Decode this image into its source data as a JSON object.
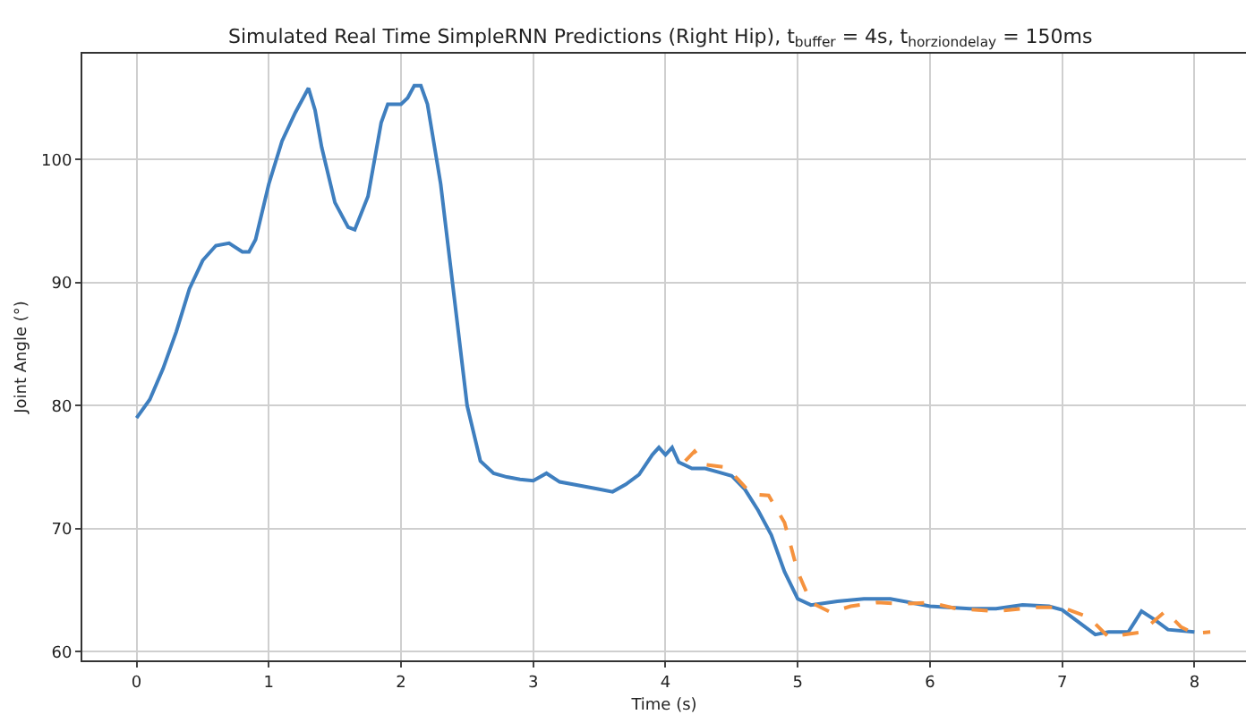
{
  "chart_data": {
    "type": "line",
    "title": "Simulated Real Time SimpleRNN Predictions (Right Hip), t$_{buffer}$ = 4s, t$_{horziondelay}$ = 150ms",
    "xlabel": "Time (s)",
    "ylabel": "Joint Angle (°)",
    "xlim": [
      -0.41,
      8.39
    ],
    "xticks": [
      0,
      1,
      2,
      3,
      4,
      5,
      6,
      7,
      8
    ],
    "ylim": [
      59.3,
      108.6
    ],
    "yticks": [
      60,
      70,
      80,
      90,
      100
    ],
    "grid": true,
    "marker": "none",
    "series": [
      {
        "color": "#3f7fbf",
        "line_style": "solid",
        "x": [
          0,
          0.1,
          0.2,
          0.3,
          0.4,
          0.5,
          0.6,
          0.7,
          0.8,
          0.85,
          0.9,
          1.0,
          1.1,
          1.2,
          1.3,
          1.35,
          1.4,
          1.5,
          1.6,
          1.65,
          1.75,
          1.85,
          1.9,
          2.0,
          2.05,
          2.1,
          2.15,
          2.2,
          2.3,
          2.4,
          2.5,
          2.6,
          2.7,
          2.8,
          2.9,
          3.0,
          3.1,
          3.2,
          3.3,
          3.4,
          3.5,
          3.6,
          3.7,
          3.8,
          3.9,
          3.95,
          4.0,
          4.05,
          4.1,
          4.2,
          4.3,
          4.4,
          4.5,
          4.6,
          4.7,
          4.8,
          4.9,
          5.0,
          5.1,
          5.3,
          5.5,
          5.7,
          6.0,
          6.3,
          6.5,
          6.7,
          6.9,
          7.0,
          7.1,
          7.25,
          7.35,
          7.5,
          7.6,
          7.7,
          7.8,
          8.0
        ],
        "values": [
          79,
          80.5,
          83,
          86,
          89.5,
          91.8,
          93,
          93.2,
          92.5,
          92.5,
          93.5,
          98,
          101.5,
          103.8,
          105.8,
          104,
          101,
          96.5,
          94.5,
          94.3,
          97,
          103,
          104.5,
          104.5,
          105,
          106,
          106,
          104.5,
          98,
          89,
          80,
          75.5,
          74.5,
          74.2,
          74.0,
          73.9,
          74.5,
          73.8,
          73.6,
          73.4,
          73.2,
          73.0,
          73.6,
          74.4,
          76.0,
          76.6,
          76.0,
          76.6,
          75.4,
          74.9,
          74.9,
          74.6,
          74.3,
          73.2,
          71.5,
          69.5,
          66.5,
          64.3,
          63.8,
          64.1,
          64.3,
          64.3,
          63.7,
          63.5,
          63.5,
          63.8,
          63.7,
          63.4,
          62.6,
          61.4,
          61.6,
          61.6,
          63.3,
          62.6,
          61.8,
          61.6
        ]
      },
      {
        "color": "#f5923e",
        "line_style": "dashed",
        "x": [
          4.15,
          4.22,
          4.3,
          4.45,
          4.55,
          4.65,
          4.78,
          4.9,
          5.0,
          5.1,
          5.25,
          5.4,
          5.6,
          5.8,
          6.0,
          6.2,
          6.5,
          6.8,
          7.0,
          7.2,
          7.35,
          7.6,
          7.78,
          7.9,
          8.0,
          8.12
        ],
        "values": [
          75.5,
          76.3,
          75.2,
          75.0,
          74.0,
          72.8,
          72.7,
          70.5,
          66.5,
          64.0,
          63.2,
          63.7,
          64.0,
          63.9,
          64.0,
          63.5,
          63.3,
          63.6,
          63.6,
          62.8,
          61.2,
          61.6,
          63.3,
          62.0,
          61.5,
          61.6
        ]
      }
    ]
  }
}
